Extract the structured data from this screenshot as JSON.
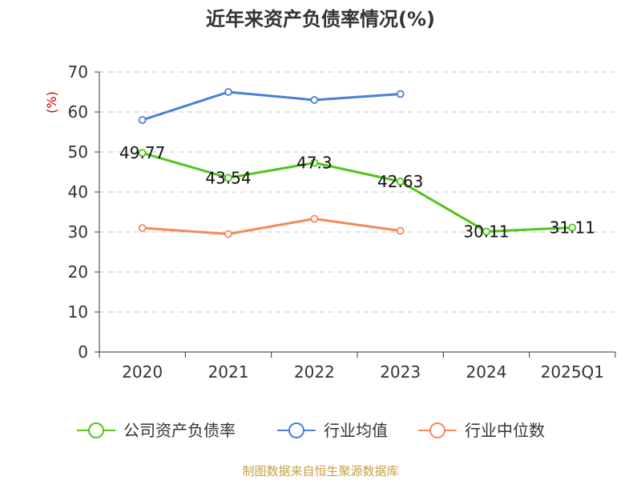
{
  "chart_data": {
    "type": "line",
    "title": "近年来资产负债率情况(%)",
    "ylabel": "(%)",
    "xlabel": "",
    "categories": [
      "2020",
      "2021",
      "2022",
      "2023",
      "2024",
      "2025Q1"
    ],
    "ylim": [
      0,
      70
    ],
    "yticks": [
      0,
      10,
      20,
      30,
      40,
      50,
      60,
      70
    ],
    "grid": true,
    "legend_position": "bottom",
    "series": [
      {
        "name": "公司资产负债率",
        "color": "#52c41a",
        "values": [
          49.77,
          43.54,
          47.3,
          42.63,
          30.11,
          31.11
        ],
        "labels": [
          "49.77",
          "43.54",
          "47.3",
          "42.63",
          "30.11",
          "31.11"
        ]
      },
      {
        "name": "行业均值",
        "color": "#4a7fd6",
        "values": [
          58.0,
          65.0,
          63.0,
          64.5,
          null,
          null
        ]
      },
      {
        "name": "行业中位数",
        "color": "#f5895b",
        "values": [
          31.0,
          29.5,
          33.3,
          30.3,
          null,
          null
        ]
      }
    ],
    "source": "制图数据来自恒生聚源数据库"
  },
  "colors": {
    "unit_label": "#cc0000",
    "source_text": "#c8a040",
    "axis": "#333333",
    "grid": "#c8c8c8"
  }
}
